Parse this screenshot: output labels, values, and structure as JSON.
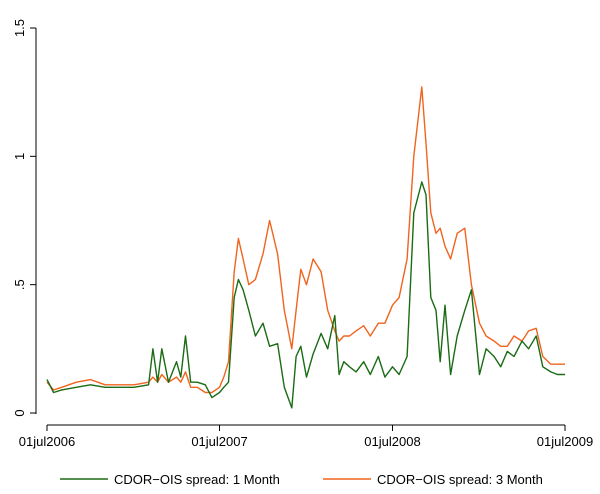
{
  "chart_data": {
    "type": "line",
    "title": "",
    "xlabel": "",
    "ylabel": "",
    "xlim": [
      "2006-07-01",
      "2009-07-01"
    ],
    "ylim": [
      0,
      1.5
    ],
    "x_ticks": [
      "01jul2006",
      "01jul2007",
      "01jul2008",
      "01jul2009"
    ],
    "y_ticks": [
      "0",
      ".5",
      "1",
      "1.5"
    ],
    "grid": false,
    "legend_position": "bottom",
    "series": [
      {
        "name": "CDOR−OIS spread: 1 Month",
        "color": "#1a6b14",
        "x": [
          "2006-07-01",
          "2006-07-15",
          "2006-08-01",
          "2006-09-01",
          "2006-10-01",
          "2006-11-01",
          "2006-12-01",
          "2007-01-01",
          "2007-02-01",
          "2007-02-10",
          "2007-02-20",
          "2007-03-01",
          "2007-03-15",
          "2007-04-01",
          "2007-04-10",
          "2007-04-20",
          "2007-05-01",
          "2007-05-15",
          "2007-06-01",
          "2007-06-15",
          "2007-07-01",
          "2007-07-10",
          "2007-07-20",
          "2007-08-01",
          "2007-08-10",
          "2007-08-20",
          "2007-09-01",
          "2007-09-15",
          "2007-10-01",
          "2007-10-15",
          "2007-11-01",
          "2007-11-15",
          "2007-12-01",
          "2007-12-10",
          "2007-12-20",
          "2008-01-01",
          "2008-01-15",
          "2008-02-01",
          "2008-02-15",
          "2008-03-01",
          "2008-03-10",
          "2008-03-20",
          "2008-04-01",
          "2008-04-15",
          "2008-05-01",
          "2008-05-15",
          "2008-06-01",
          "2008-06-15",
          "2008-07-01",
          "2008-07-15",
          "2008-08-01",
          "2008-08-15",
          "2008-09-01",
          "2008-09-10",
          "2008-09-20",
          "2008-10-01",
          "2008-10-10",
          "2008-10-20",
          "2008-11-01",
          "2008-11-15",
          "2008-12-01",
          "2008-12-15",
          "2009-01-01",
          "2009-01-15",
          "2009-02-01",
          "2009-02-15",
          "2009-03-01",
          "2009-03-15",
          "2009-04-01",
          "2009-04-15",
          "2009-05-01",
          "2009-05-15",
          "2009-06-01",
          "2009-06-15",
          "2009-07-01"
        ],
        "values": [
          0.13,
          0.08,
          0.09,
          0.1,
          0.11,
          0.1,
          0.1,
          0.1,
          0.11,
          0.25,
          0.12,
          0.25,
          0.12,
          0.2,
          0.14,
          0.3,
          0.12,
          0.12,
          0.11,
          0.06,
          0.08,
          0.1,
          0.12,
          0.45,
          0.52,
          0.48,
          0.4,
          0.3,
          0.35,
          0.26,
          0.27,
          0.1,
          0.02,
          0.22,
          0.26,
          0.14,
          0.23,
          0.31,
          0.25,
          0.38,
          0.15,
          0.2,
          0.18,
          0.16,
          0.2,
          0.15,
          0.22,
          0.14,
          0.18,
          0.15,
          0.22,
          0.78,
          0.9,
          0.85,
          0.45,
          0.4,
          0.2,
          0.42,
          0.15,
          0.3,
          0.4,
          0.48,
          0.15,
          0.25,
          0.22,
          0.18,
          0.24,
          0.22,
          0.28,
          0.25,
          0.3,
          0.18,
          0.16,
          0.15,
          0.15
        ]
      },
      {
        "name": "CDOR−OIS spread: 3 Month",
        "color": "#f0641e",
        "x": [
          "2006-07-01",
          "2006-07-15",
          "2006-08-01",
          "2006-09-01",
          "2006-10-01",
          "2006-11-01",
          "2006-12-01",
          "2007-01-01",
          "2007-02-01",
          "2007-02-10",
          "2007-02-20",
          "2007-03-01",
          "2007-03-15",
          "2007-04-01",
          "2007-04-10",
          "2007-04-20",
          "2007-05-01",
          "2007-05-15",
          "2007-06-01",
          "2007-06-15",
          "2007-07-01",
          "2007-07-10",
          "2007-07-20",
          "2007-08-01",
          "2007-08-10",
          "2007-08-20",
          "2007-09-01",
          "2007-09-15",
          "2007-10-01",
          "2007-10-15",
          "2007-11-01",
          "2007-11-15",
          "2007-12-01",
          "2007-12-10",
          "2007-12-20",
          "2008-01-01",
          "2008-01-15",
          "2008-02-01",
          "2008-02-15",
          "2008-03-01",
          "2008-03-10",
          "2008-03-20",
          "2008-04-01",
          "2008-04-15",
          "2008-05-01",
          "2008-05-15",
          "2008-06-01",
          "2008-06-15",
          "2008-07-01",
          "2008-07-15",
          "2008-08-01",
          "2008-08-15",
          "2008-09-01",
          "2008-09-10",
          "2008-09-20",
          "2008-10-01",
          "2008-10-10",
          "2008-10-20",
          "2008-11-01",
          "2008-11-15",
          "2008-12-01",
          "2008-12-15",
          "2009-01-01",
          "2009-01-15",
          "2009-02-01",
          "2009-02-15",
          "2009-03-01",
          "2009-03-15",
          "2009-04-01",
          "2009-04-15",
          "2009-05-01",
          "2009-05-15",
          "2009-06-01",
          "2009-06-15",
          "2009-07-01"
        ],
        "values": [
          0.12,
          0.09,
          0.1,
          0.12,
          0.13,
          0.11,
          0.11,
          0.11,
          0.12,
          0.14,
          0.12,
          0.15,
          0.12,
          0.14,
          0.12,
          0.16,
          0.1,
          0.1,
          0.08,
          0.08,
          0.1,
          0.14,
          0.2,
          0.55,
          0.68,
          0.6,
          0.5,
          0.52,
          0.62,
          0.75,
          0.62,
          0.4,
          0.25,
          0.4,
          0.56,
          0.5,
          0.6,
          0.55,
          0.4,
          0.32,
          0.28,
          0.3,
          0.3,
          0.32,
          0.34,
          0.3,
          0.35,
          0.35,
          0.42,
          0.45,
          0.6,
          1.0,
          1.27,
          1.05,
          0.78,
          0.7,
          0.72,
          0.65,
          0.6,
          0.7,
          0.72,
          0.5,
          0.35,
          0.3,
          0.28,
          0.26,
          0.26,
          0.3,
          0.28,
          0.32,
          0.33,
          0.22,
          0.19,
          0.19,
          0.19
        ]
      }
    ]
  }
}
